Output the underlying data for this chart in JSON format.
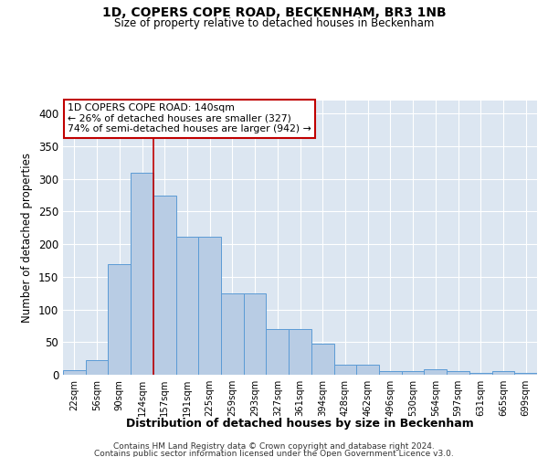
{
  "title": "1D, COPERS COPE ROAD, BECKENHAM, BR3 1NB",
  "subtitle": "Size of property relative to detached houses in Beckenham",
  "xlabel": "Distribution of detached houses by size in Beckenham",
  "ylabel": "Number of detached properties",
  "bar_labels": [
    "22sqm",
    "56sqm",
    "90sqm",
    "124sqm",
    "157sqm",
    "191sqm",
    "225sqm",
    "259sqm",
    "293sqm",
    "327sqm",
    "361sqm",
    "394sqm",
    "428sqm",
    "462sqm",
    "496sqm",
    "530sqm",
    "564sqm",
    "597sqm",
    "631sqm",
    "665sqm",
    "699sqm"
  ],
  "bar_values": [
    7,
    22,
    170,
    309,
    275,
    212,
    212,
    125,
    125,
    70,
    70,
    48,
    15,
    15,
    5,
    5,
    8,
    5,
    3,
    5,
    3
  ],
  "bar_color": "#b8cce4",
  "bar_edge_color": "#5b9bd5",
  "bg_color": "#dce6f1",
  "grid_color": "#ffffff",
  "property_bin_index": 3,
  "annotation_line1": "1D COPERS COPE ROAD: 140sqm",
  "annotation_line2": "← 26% of detached houses are smaller (327)",
  "annotation_line3": "74% of semi-detached houses are larger (942) →",
  "vline_color": "#c00000",
  "box_color": "#c00000",
  "footer1": "Contains HM Land Registry data © Crown copyright and database right 2024.",
  "footer2": "Contains public sector information licensed under the Open Government Licence v3.0.",
  "ylim": [
    0,
    420
  ],
  "yticks": [
    0,
    50,
    100,
    150,
    200,
    250,
    300,
    350,
    400
  ]
}
